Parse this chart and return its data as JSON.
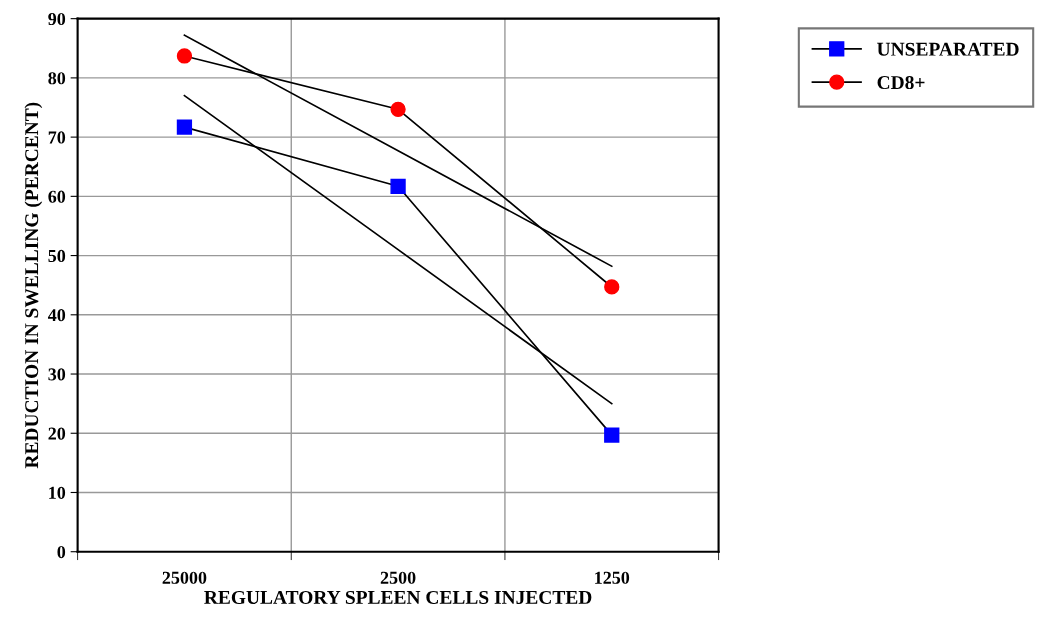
{
  "chart_data": {
    "type": "line",
    "xlabel": "REGULATORY SPLEEN CELLS INJECTED",
    "ylabel": "REDUCTION IN SWELLING (PERCENT)",
    "categories": [
      "25000",
      "2500",
      "1250"
    ],
    "series": [
      {
        "name": "UNSEPARATED",
        "color": "#0000ff",
        "marker": "square",
        "values": [
          71.7,
          61.7,
          19.7
        ]
      },
      {
        "name": "CD8+",
        "color": "#ff0000",
        "marker": "circle",
        "values": [
          83.7,
          74.7,
          44.7
        ]
      },
      {
        "type": "line",
        "color": "#000000",
        "marker": "none",
        "values": [
          77.0,
          51.0,
          25.0
        ]
      },
      {
        "type": "line",
        "color": "#000000",
        "marker": "none",
        "values": [
          87.2,
          67.7,
          48.2
        ]
      }
    ],
    "ylim": [
      0,
      90
    ],
    "yticks": [
      0,
      10,
      20,
      30,
      40,
      50,
      60,
      70,
      80,
      90
    ],
    "grid": true,
    "legend": "top right",
    "line_style": "solid"
  }
}
